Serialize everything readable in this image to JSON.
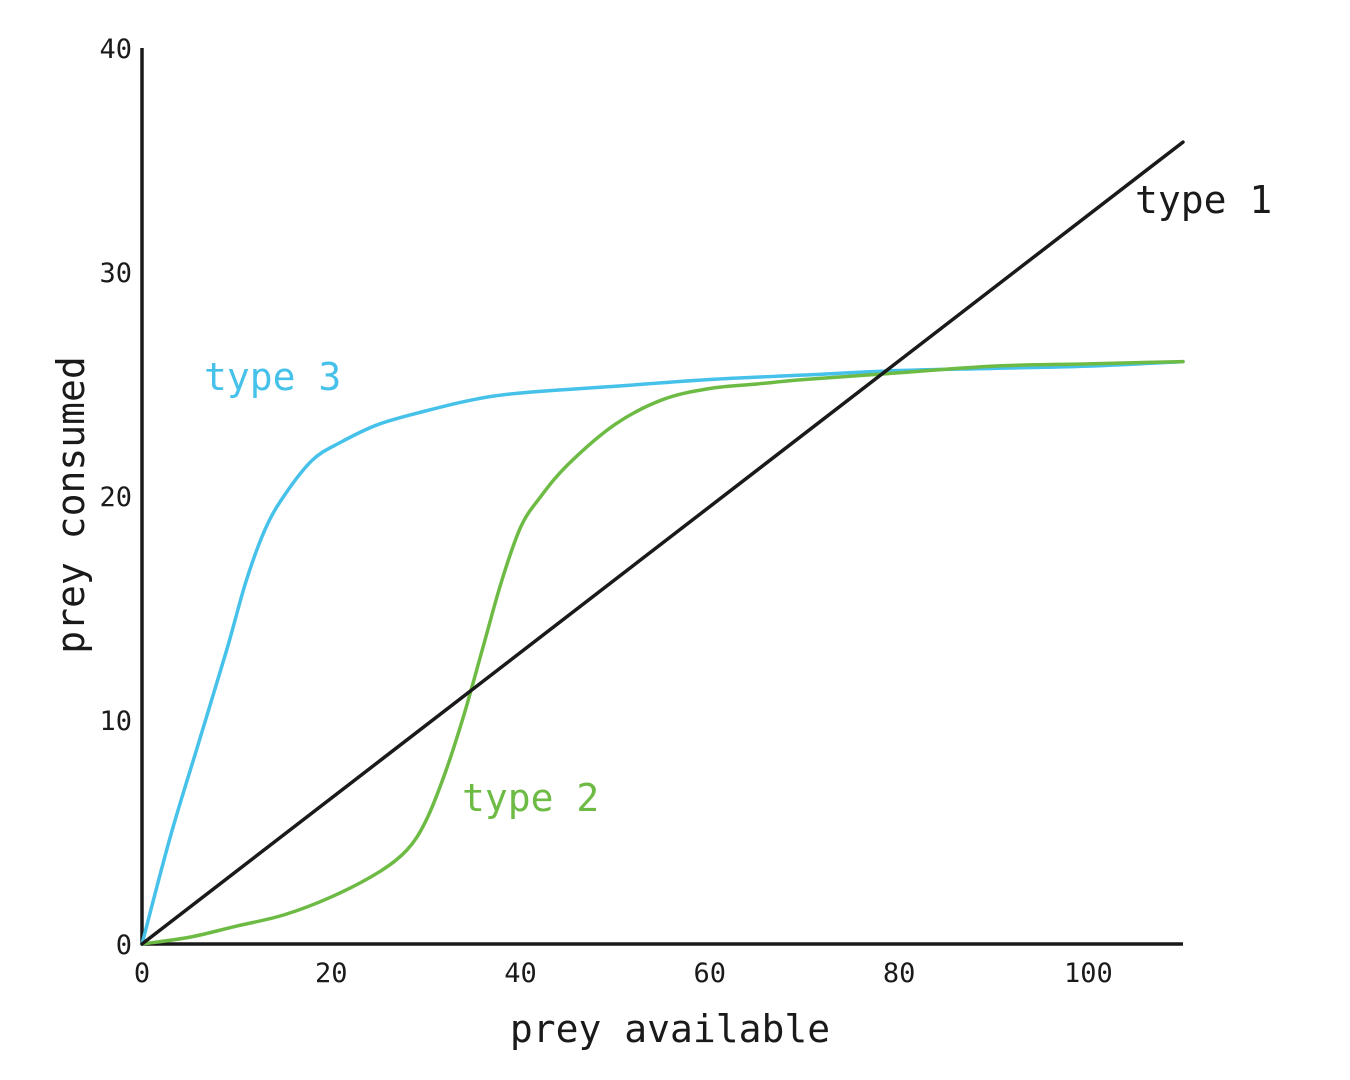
{
  "chart_data": {
    "type": "line",
    "title": "",
    "xlabel": "prey available",
    "ylabel": "prey consumed",
    "xlim": [
      0,
      110
    ],
    "ylim": [
      0,
      40
    ],
    "xticks": [
      0,
      20,
      40,
      60,
      80,
      100
    ],
    "yticks": [
      0,
      10,
      20,
      30,
      40
    ],
    "grid": false,
    "legend": "none",
    "series": [
      {
        "name": "type 1",
        "color": "#1a1a1a",
        "x": [
          0,
          110
        ],
        "y": [
          0,
          35.8
        ]
      },
      {
        "name": "type 2",
        "color": "#6dbb45",
        "x": [
          0,
          5,
          10,
          15,
          20,
          25,
          28,
          30,
          32,
          34,
          36,
          38,
          40,
          42,
          45,
          50,
          55,
          60,
          65,
          70,
          80,
          90,
          100,
          110
        ],
        "y": [
          0,
          0.3,
          0.8,
          1.3,
          2.1,
          3.2,
          4.2,
          5.5,
          7.6,
          10.2,
          13.2,
          16.2,
          18.6,
          19.9,
          21.4,
          23.2,
          24.3,
          24.8,
          25.0,
          25.2,
          25.5,
          25.8,
          25.9,
          26.0
        ]
      },
      {
        "name": "type 3",
        "color": "#45c1ea",
        "x": [
          0,
          3,
          6,
          9,
          11,
          13,
          15,
          18,
          21,
          25,
          30,
          35,
          40,
          50,
          60,
          70,
          80,
          90,
          100,
          110
        ],
        "y": [
          0,
          4.8,
          9.0,
          13.2,
          16.2,
          18.5,
          20.0,
          21.6,
          22.4,
          23.2,
          23.8,
          24.3,
          24.6,
          24.9,
          25.2,
          25.4,
          25.6,
          25.7,
          25.8,
          26.0
        ]
      }
    ]
  }
}
